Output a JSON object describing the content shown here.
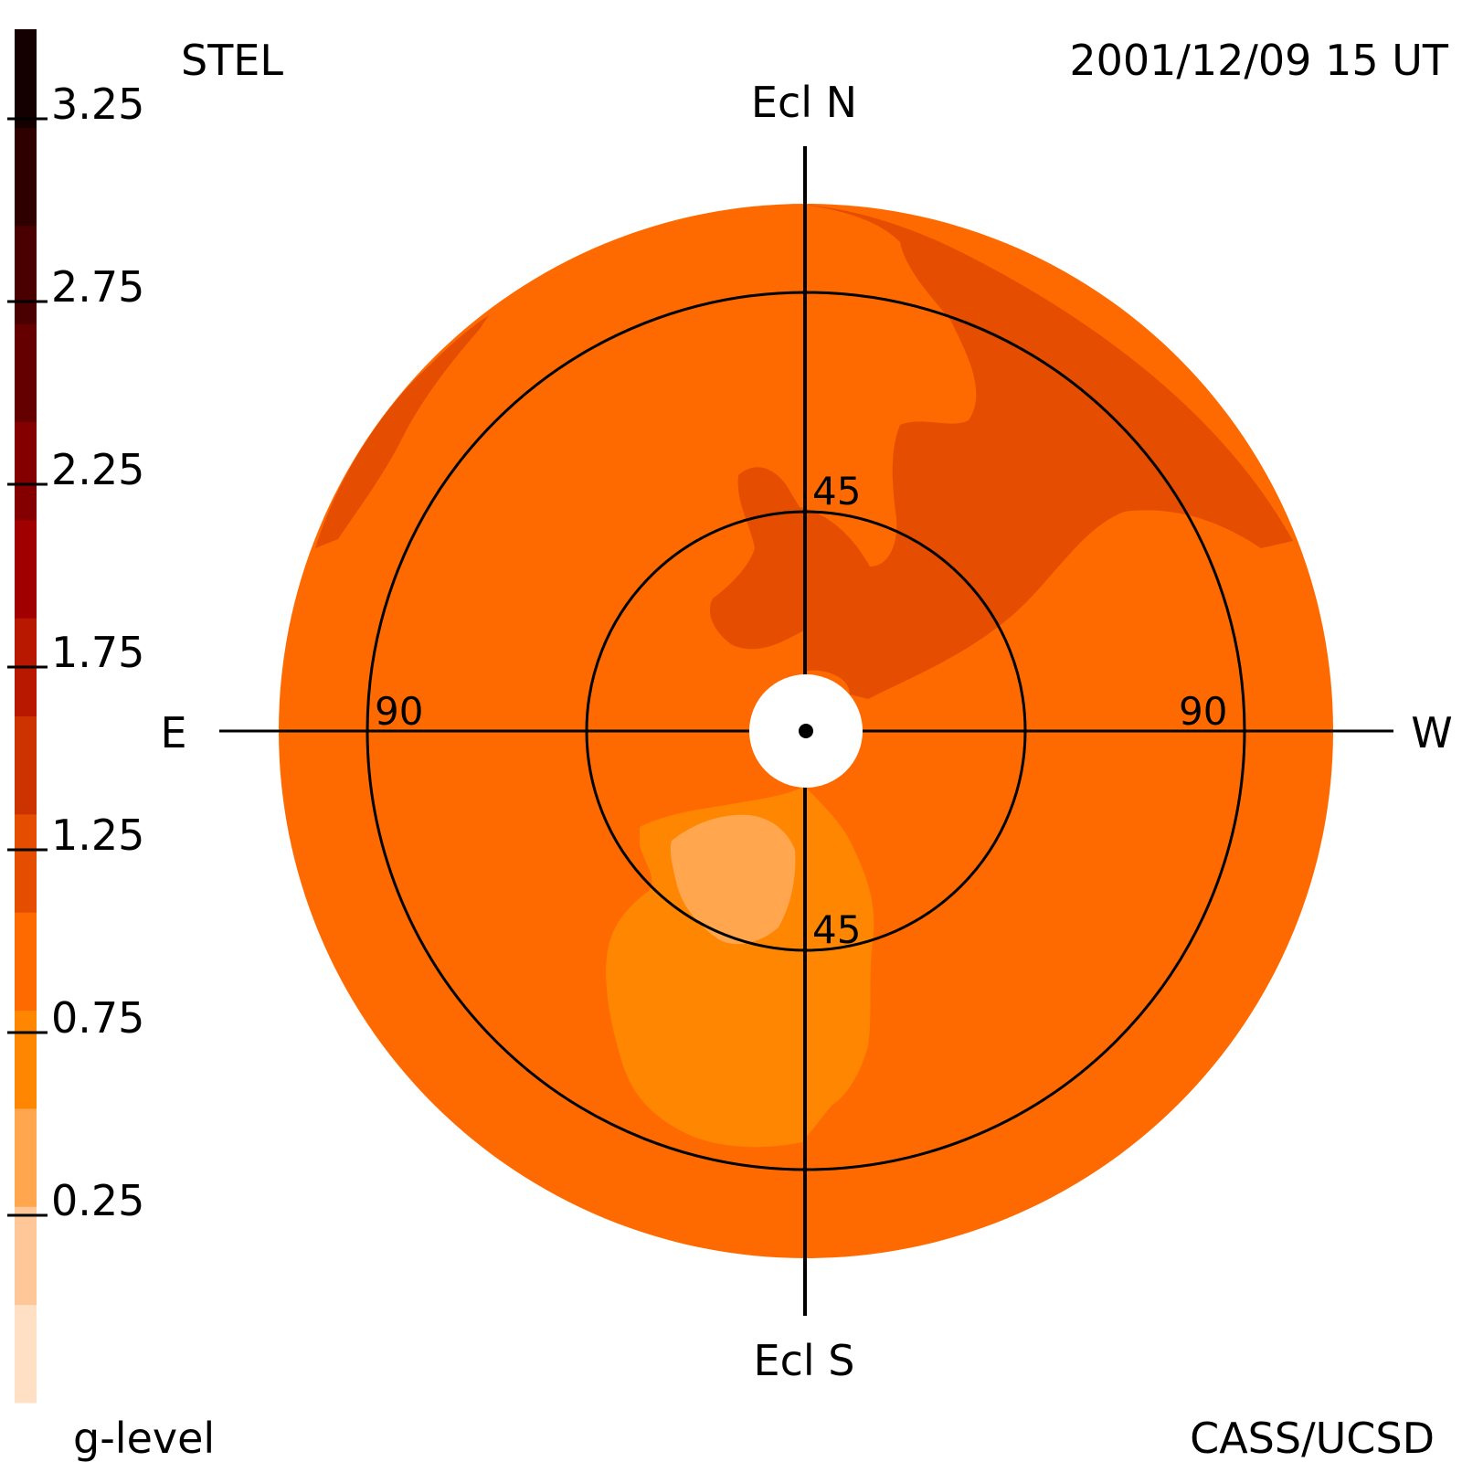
{
  "header": {
    "instrument": "STEL",
    "datetime": "2001/12/09 15 UT"
  },
  "footer": {
    "colorbar_label": "g-level",
    "credit": "CASS/UCSD"
  },
  "directions": {
    "north": "Ecl N",
    "south": "Ecl S",
    "east": "E",
    "west": "W"
  },
  "ring_labels": {
    "inner_north": "45",
    "inner_south": "45",
    "outer_east": "90",
    "outer_west": "90"
  },
  "colorbar": {
    "tick_labels": [
      "3.25",
      "2.75",
      "2.25",
      "1.75",
      "1.25",
      "0.75",
      "0.25"
    ],
    "bands": [
      {
        "color": "#ffe0c4"
      },
      {
        "color": "#ffc797"
      },
      {
        "color": "#ffa64e"
      },
      {
        "color": "#ff8600"
      },
      {
        "color": "#ff6a00"
      },
      {
        "color": "#e54e00"
      },
      {
        "color": "#cc3300"
      },
      {
        "color": "#b81800"
      },
      {
        "color": "#a00000"
      },
      {
        "color": "#840000"
      },
      {
        "color": "#640000"
      },
      {
        "color": "#4a0000"
      },
      {
        "color": "#2e0000"
      },
      {
        "color": "#150000"
      }
    ]
  },
  "map_colors": {
    "background": "#ff6a00",
    "dense_region": "#e54e00",
    "sparse_region": "#ff8600",
    "very_sparse_region": "#ffa64e",
    "occulter": "#ffffff"
  }
}
